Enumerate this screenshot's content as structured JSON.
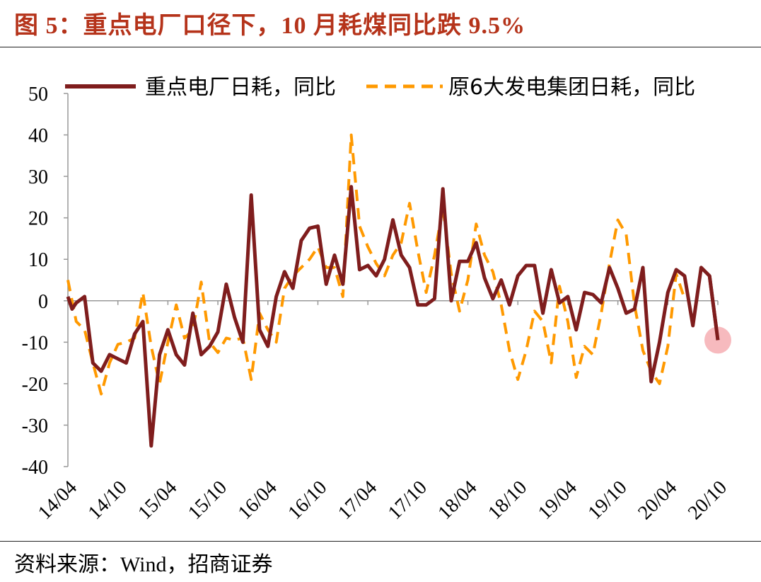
{
  "figure": {
    "title": "图 5：重点电厂口径下，10 月耗煤同比跌 9.5%",
    "source": "资料来源：Wind，招商证券"
  },
  "colors": {
    "title": "#b5331a",
    "series_primary": "#7f1d1d",
    "series_secondary": "#ff9900",
    "highlight": "#f4a3a8"
  },
  "chart_data": {
    "type": "line",
    "title": "",
    "xlabel": "",
    "ylabel": "",
    "ylim": [
      -40,
      50
    ],
    "yticks": [
      50,
      40,
      30,
      20,
      10,
      0,
      -10,
      -20,
      -30,
      -40
    ],
    "xticks": [
      "14/04",
      "14/10",
      "15/04",
      "15/10",
      "16/04",
      "16/10",
      "17/04",
      "17/10",
      "18/04",
      "18/10",
      "19/04",
      "19/10",
      "20/04",
      "20/10"
    ],
    "legend_position": "top",
    "grid": false,
    "series": [
      {
        "name": "重点电厂日耗，同比",
        "style": "solid",
        "points": [
          [
            0,
            1
          ],
          [
            0.5,
            -2
          ],
          [
            1,
            -0.5
          ],
          [
            2,
            1
          ],
          [
            3,
            -15
          ],
          [
            4,
            -17
          ],
          [
            5,
            -13
          ],
          [
            6,
            -14
          ],
          [
            7,
            -15
          ],
          [
            8,
            -8
          ],
          [
            9,
            -5
          ],
          [
            10,
            -35
          ],
          [
            11,
            -13
          ],
          [
            12,
            -7
          ],
          [
            13,
            -13
          ],
          [
            14,
            -15.5
          ],
          [
            15,
            -3
          ],
          [
            16,
            -13
          ],
          [
            17,
            -11
          ],
          [
            18,
            -7.5
          ],
          [
            19,
            4
          ],
          [
            20,
            -4
          ],
          [
            21,
            -10
          ],
          [
            22,
            25.5
          ],
          [
            23,
            -7
          ],
          [
            24,
            -11
          ],
          [
            25,
            1
          ],
          [
            26,
            7
          ],
          [
            27,
            3
          ],
          [
            28,
            14.5
          ],
          [
            29,
            17.5
          ],
          [
            30,
            18
          ],
          [
            31,
            4
          ],
          [
            32,
            11
          ],
          [
            33,
            4
          ],
          [
            34,
            27.5
          ],
          [
            35,
            7.5
          ],
          [
            36,
            8.5
          ],
          [
            37,
            6
          ],
          [
            38,
            10
          ],
          [
            39,
            19.5
          ],
          [
            40,
            11
          ],
          [
            41,
            8
          ],
          [
            42,
            -1
          ],
          [
            43,
            -1
          ],
          [
            44,
            0.5
          ],
          [
            45,
            27
          ],
          [
            46,
            0
          ],
          [
            47,
            9.5
          ],
          [
            48,
            9.5
          ],
          [
            49,
            14
          ],
          [
            50,
            5.5
          ],
          [
            51,
            0.5
          ],
          [
            52,
            5
          ],
          [
            53,
            -1
          ],
          [
            54,
            6
          ],
          [
            55,
            8.5
          ],
          [
            56,
            8.5
          ],
          [
            57,
            -3
          ],
          [
            58,
            7.5
          ],
          [
            59,
            -0.5
          ],
          [
            60,
            1
          ],
          [
            61,
            -7
          ],
          [
            62,
            2
          ],
          [
            63,
            1.5
          ],
          [
            64,
            -0.5
          ],
          [
            65,
            8
          ],
          [
            66,
            3
          ],
          [
            67,
            -3
          ],
          [
            68,
            -2
          ],
          [
            69,
            8
          ],
          [
            70,
            -19.5
          ],
          [
            71,
            -10
          ],
          [
            72,
            2
          ],
          [
            73,
            7.5
          ],
          [
            74,
            6
          ],
          [
            75,
            -6
          ],
          [
            76,
            8
          ],
          [
            77,
            6
          ],
          [
            78,
            -9.5
          ]
        ]
      },
      {
        "name": "原6大发电集团日耗，同比",
        "style": "dashed",
        "points": [
          [
            0,
            5
          ],
          [
            1,
            -5
          ],
          [
            2,
            -7
          ],
          [
            3,
            -15
          ],
          [
            4,
            -22.5
          ],
          [
            5,
            -15
          ],
          [
            6,
            -10.5
          ],
          [
            7,
            -10
          ],
          [
            8,
            -9
          ],
          [
            9,
            2
          ],
          [
            10,
            -11
          ],
          [
            11,
            -20
          ],
          [
            12,
            -10
          ],
          [
            13,
            -1
          ],
          [
            14,
            -9
          ],
          [
            15,
            -7
          ],
          [
            16,
            4.5
          ],
          [
            17,
            -10
          ],
          [
            18,
            -12.5
          ],
          [
            19,
            -9
          ],
          [
            20,
            -9.5
          ],
          [
            21,
            -9
          ],
          [
            22,
            -19
          ],
          [
            23,
            -3
          ],
          [
            24,
            -7
          ],
          [
            25,
            -10
          ],
          [
            26,
            3
          ],
          [
            27,
            6
          ],
          [
            28,
            8
          ],
          [
            29,
            10
          ],
          [
            30,
            13
          ],
          [
            31,
            8
          ],
          [
            32,
            8
          ],
          [
            33,
            1
          ],
          [
            34,
            40
          ],
          [
            35,
            18
          ],
          [
            36,
            13
          ],
          [
            37,
            9
          ],
          [
            38,
            6
          ],
          [
            39,
            11
          ],
          [
            40,
            14
          ],
          [
            41,
            23.5
          ],
          [
            42,
            12
          ],
          [
            43,
            2
          ],
          [
            44,
            11
          ],
          [
            45,
            22.5
          ],
          [
            46,
            6.5
          ],
          [
            47,
            -2.5
          ],
          [
            48,
            5
          ],
          [
            49,
            18.5
          ],
          [
            50,
            11
          ],
          [
            51,
            7
          ],
          [
            52,
            -1
          ],
          [
            53,
            -12
          ],
          [
            54,
            -19
          ],
          [
            55,
            -12
          ],
          [
            56,
            -2.5
          ],
          [
            57,
            -5
          ],
          [
            58,
            -15
          ],
          [
            59,
            3.5
          ],
          [
            60,
            -5
          ],
          [
            61,
            -18.5
          ],
          [
            62,
            -11
          ],
          [
            63,
            -13
          ],
          [
            64,
            -3
          ],
          [
            65,
            9
          ],
          [
            66,
            19.5
          ],
          [
            67,
            16
          ],
          [
            68,
            -1
          ],
          [
            69,
            -12
          ],
          [
            70,
            -17
          ],
          [
            71,
            -20
          ],
          [
            72,
            -11
          ],
          [
            73,
            6.5
          ],
          [
            74,
            0.5
          ]
        ]
      }
    ]
  }
}
